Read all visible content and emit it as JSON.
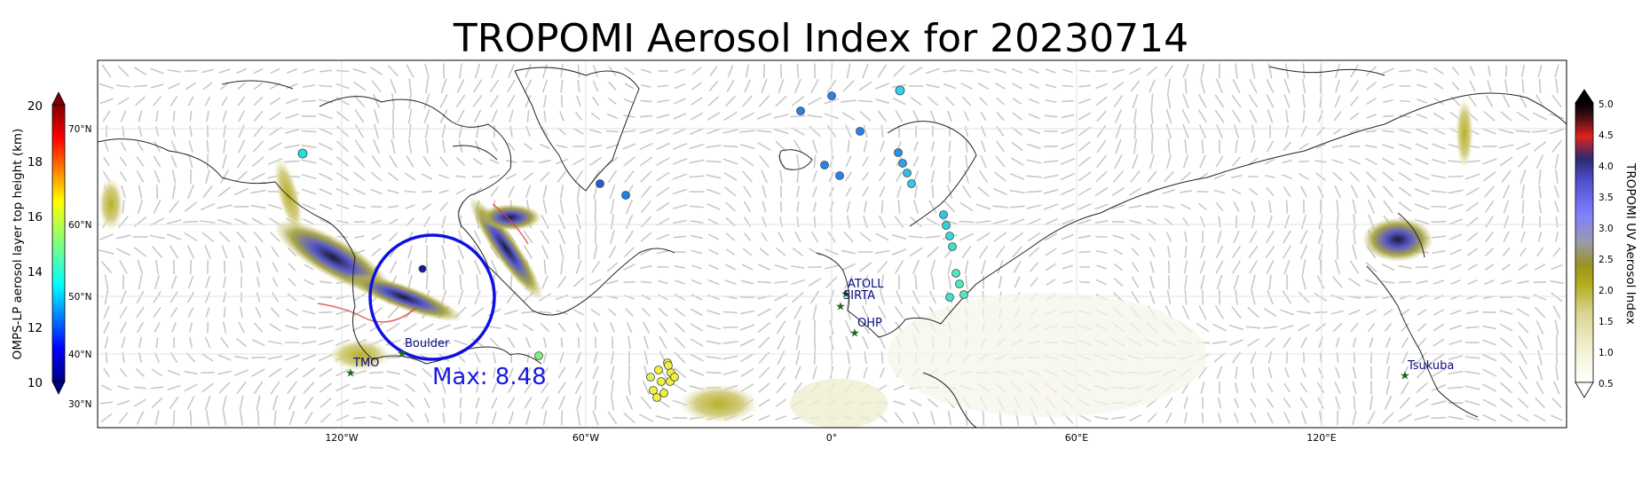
{
  "title": "TROPOMI Aerosol Index for 20230714",
  "max_label": "Max: 8.48",
  "map": {
    "lon_ticks": [
      "120°W",
      "60°W",
      "0°",
      "60°E",
      "120°E"
    ],
    "lat_ticks": [
      "70°N",
      "60°N",
      "50°N",
      "40°N",
      "30°N"
    ],
    "stations": [
      {
        "name": "ATOLL"
      },
      {
        "name": "SIRTA"
      },
      {
        "name": "OHP"
      },
      {
        "name": "Boulder"
      },
      {
        "name": "TMO"
      },
      {
        "name": "Tsukuba"
      }
    ]
  },
  "left_colorbar": {
    "label": "OMPS-LP aerosol layer top height (km)",
    "ticks": [
      "20",
      "18",
      "16",
      "14",
      "12",
      "10"
    ],
    "colormap": "jet"
  },
  "right_colorbar": {
    "label": "TROPOMI UV Aerosol Index",
    "ticks": [
      "5.0",
      "4.5",
      "4.0",
      "3.5",
      "3.0",
      "2.5",
      "2.0",
      "1.5",
      "1.0",
      "0.5"
    ]
  },
  "colors": {
    "circle": "#1010e0",
    "max_text": "#1a1ae0",
    "station_star": "#1a6a1a",
    "station_label": "#0a0a80",
    "coast": "#222222",
    "wind": "#c8c8c8"
  }
}
